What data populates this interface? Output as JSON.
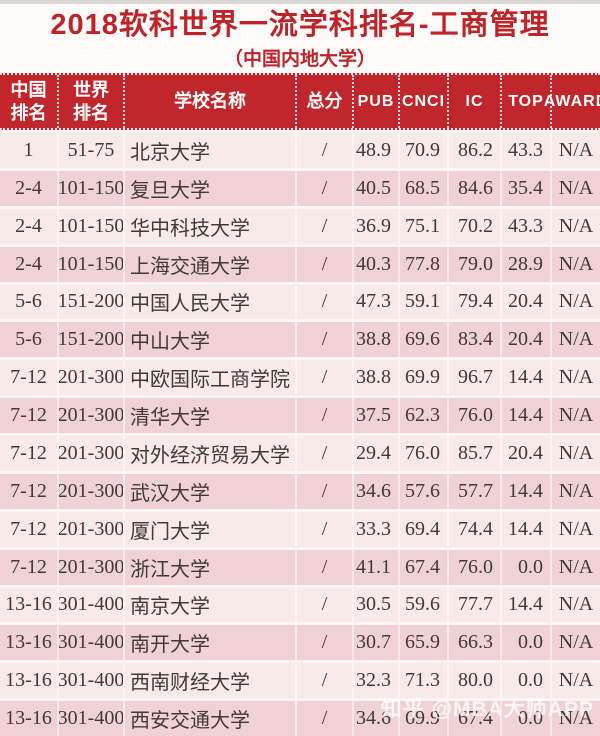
{
  "page": {
    "title": "2018软科世界一流学科排名-工商管理",
    "subtitle": "（中国内地大学）",
    "watermark": "知乎 @MBA大师APP"
  },
  "colors": {
    "header_bg": "#c0262c",
    "title_red": "#bd2329",
    "row_light": "#f8eae7",
    "row_dark": "#f1d2d4",
    "body_text": "#403a36"
  },
  "table": {
    "header_lines": [
      [
        "中国",
        "排名"
      ],
      [
        "世界",
        "排名"
      ],
      [
        "学校名称"
      ],
      [
        "总分"
      ],
      [
        "PUB"
      ],
      [
        "CNCI"
      ],
      [
        "IC"
      ],
      [
        "TOP"
      ],
      [
        "AWARD"
      ]
    ]
  },
  "chart_data": {
    "type": "table",
    "title": "2018软科世界一流学科排名-工商管理",
    "subtitle": "（中国内地大学）",
    "columns": [
      "中国排名",
      "世界排名",
      "学校名称",
      "总分",
      "PUB",
      "CNCI",
      "IC",
      "TOP",
      "AWARD"
    ],
    "rows": [
      [
        "1",
        "51-75",
        "北京大学",
        "/",
        "48.9",
        "70.9",
        "86.2",
        "43.3",
        "N/A"
      ],
      [
        "2-4",
        "101-150",
        "复旦大学",
        "/",
        "40.5",
        "68.5",
        "84.6",
        "35.4",
        "N/A"
      ],
      [
        "2-4",
        "101-150",
        "华中科技大学",
        "/",
        "36.9",
        "75.1",
        "70.2",
        "43.3",
        "N/A"
      ],
      [
        "2-4",
        "101-150",
        "上海交通大学",
        "/",
        "40.3",
        "77.8",
        "79.0",
        "28.9",
        "N/A"
      ],
      [
        "5-6",
        "151-200",
        "中国人民大学",
        "/",
        "47.3",
        "59.1",
        "79.4",
        "20.4",
        "N/A"
      ],
      [
        "5-6",
        "151-200",
        "中山大学",
        "/",
        "38.8",
        "69.6",
        "83.4",
        "20.4",
        "N/A"
      ],
      [
        "7-12",
        "201-300",
        "中欧国际工商学院",
        "/",
        "38.8",
        "69.9",
        "96.7",
        "14.4",
        "N/A"
      ],
      [
        "7-12",
        "201-300",
        "清华大学",
        "/",
        "37.5",
        "62.3",
        "76.0",
        "14.4",
        "N/A"
      ],
      [
        "7-12",
        "201-300",
        "对外经济贸易大学",
        "/",
        "29.4",
        "76.0",
        "85.7",
        "20.4",
        "N/A"
      ],
      [
        "7-12",
        "201-300",
        "武汉大学",
        "/",
        "34.6",
        "57.6",
        "57.7",
        "14.4",
        "N/A"
      ],
      [
        "7-12",
        "201-300",
        "厦门大学",
        "/",
        "33.3",
        "69.4",
        "74.4",
        "14.4",
        "N/A"
      ],
      [
        "7-12",
        "201-300",
        "浙江大学",
        "/",
        "41.1",
        "67.4",
        "76.0",
        "0.0",
        "N/A"
      ],
      [
        "13-16",
        "301-400",
        "南京大学",
        "/",
        "30.5",
        "59.6",
        "77.7",
        "14.4",
        "N/A"
      ],
      [
        "13-16",
        "301-400",
        "南开大学",
        "/",
        "30.7",
        "65.9",
        "66.3",
        "0.0",
        "N/A"
      ],
      [
        "13-16",
        "301-400",
        "西南财经大学",
        "/",
        "32.3",
        "71.3",
        "80.0",
        "0.0",
        "N/A"
      ],
      [
        "13-16",
        "301-400",
        "西安交通大学",
        "/",
        "34.6",
        "69.9",
        "67.4",
        "0.0",
        "N/A"
      ]
    ]
  }
}
